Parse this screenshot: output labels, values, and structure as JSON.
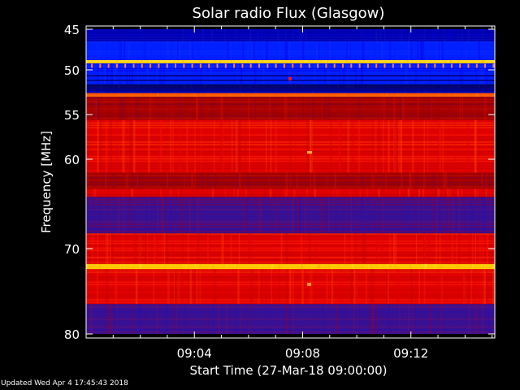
{
  "chart_data": {
    "type": "heatmap",
    "title": "Solar radio Flux (Glasgow)",
    "ylabel": "Frequency [MHz]",
    "xlabel": "Start Time (27-Mar-18 09:00:00)",
    "x_ticks": [
      "09:04",
      "09:08",
      "09:12"
    ],
    "x_tick_minutes": [
      4,
      8,
      12
    ],
    "xlim_minutes": [
      0,
      15.1
    ],
    "y_ticks": [
      45,
      50,
      55,
      60,
      70,
      80
    ],
    "ylim": [
      45,
      80
    ],
    "y_scale": "log-like (compressed at high frequency)",
    "colormap": [
      "#00008a",
      "#2020ff",
      "#8a0000",
      "#ff2a00",
      "#ffd000"
    ],
    "frequency_bands": [
      {
        "from": 45,
        "to": 46.5,
        "level": "blue"
      },
      {
        "from": 46.5,
        "to": 48.8,
        "level": "blue-bright"
      },
      {
        "from": 48.8,
        "to": 49.2,
        "level": "yellow"
      },
      {
        "from": 49.2,
        "to": 51.6,
        "level": "blue-bright"
      },
      {
        "from": 51.6,
        "to": 52.1,
        "level": "navy"
      },
      {
        "from": 52.1,
        "to": 52.6,
        "level": "blue"
      },
      {
        "from": 52.6,
        "to": 53.0,
        "level": "orange"
      },
      {
        "from": 53.0,
        "to": 55.6,
        "level": "red-dim"
      },
      {
        "from": 55.6,
        "to": 61.5,
        "level": "red"
      },
      {
        "from": 61.5,
        "to": 63.3,
        "level": "red-dim"
      },
      {
        "from": 63.3,
        "to": 64.2,
        "level": "red"
      },
      {
        "from": 64.2,
        "to": 68.3,
        "level": "purple"
      },
      {
        "from": 68.3,
        "to": 71.8,
        "level": "red"
      },
      {
        "from": 71.8,
        "to": 72.4,
        "level": "yellow"
      },
      {
        "from": 72.4,
        "to": 76.5,
        "level": "red"
      },
      {
        "from": 76.5,
        "to": 80,
        "level": "purple"
      }
    ]
  },
  "footer": {
    "updated": "Updated Wed Apr  4 17:45:43 2018"
  }
}
